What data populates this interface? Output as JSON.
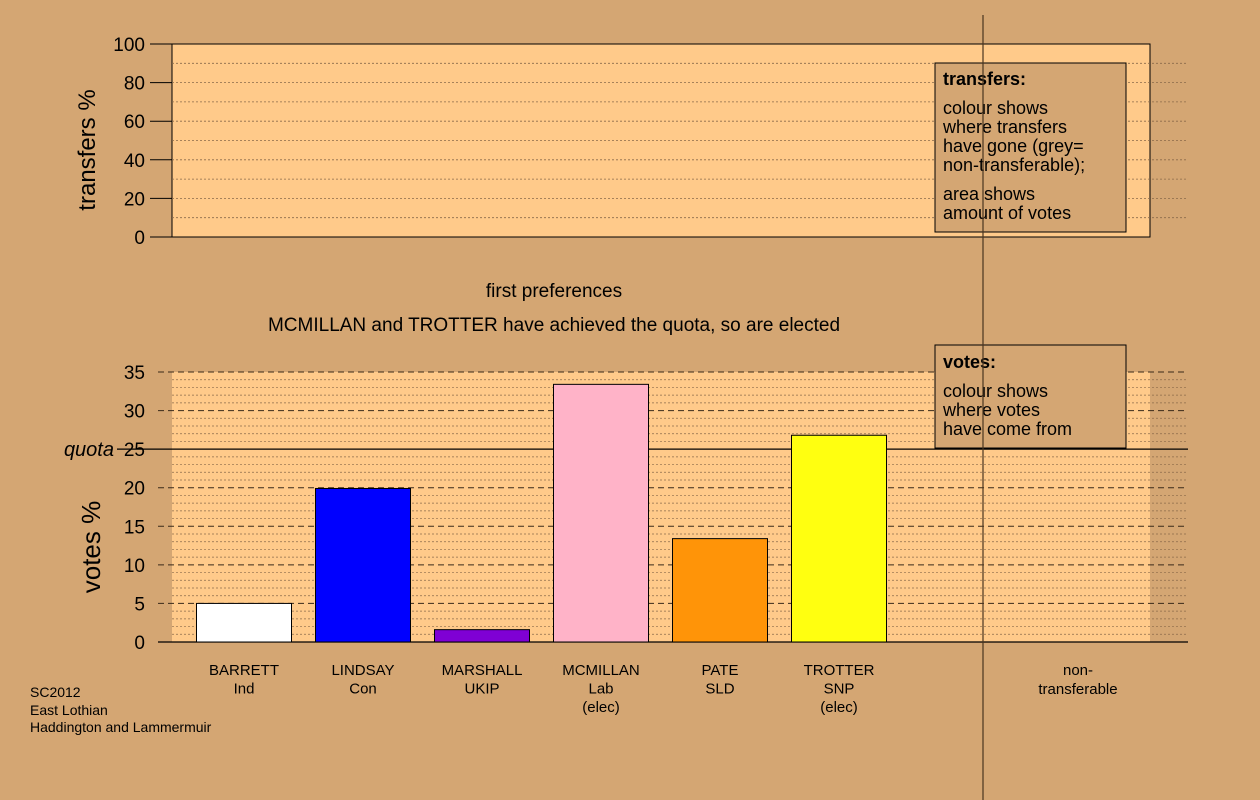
{
  "colors": {
    "background": "#d4a673",
    "plot_fill": "#ffca8a",
    "panel_fill": "#d4a673"
  },
  "top_panel": {
    "ylabel": "transfers %",
    "ticks": [
      "0",
      "20",
      "40",
      "60",
      "80",
      "100"
    ],
    "ylim": [
      0,
      100
    ],
    "legend": {
      "title": "transfers:",
      "lines": [
        "colour shows",
        "where transfers",
        "have gone (grey=",
        "non-transferable);"
      ],
      "lines2": [
        "area shows",
        "amount of votes"
      ]
    }
  },
  "stage_label": "first preferences",
  "status_message": "MCMILLAN and TROTTER have achieved the quota, so are elected",
  "footer": {
    "line1": "SC2012",
    "line2": "East Lothian",
    "line3": "Haddington and Lammermuir"
  },
  "chart_data": {
    "type": "bar",
    "title": "first preferences",
    "ylabel": "votes %",
    "ylim": [
      0,
      35
    ],
    "ticks": [
      "0",
      "5",
      "10",
      "15",
      "20",
      "25",
      "30",
      "35"
    ],
    "quota": {
      "label": "quota",
      "value": 25
    },
    "legend": {
      "title": "votes:",
      "lines": [
        "colour shows",
        "where votes",
        "have come from"
      ]
    },
    "categories": [
      {
        "name": "BARRETT",
        "party": "Ind",
        "note": "",
        "value": 5.0,
        "color": "#ffffff"
      },
      {
        "name": "LINDSAY",
        "party": "Con",
        "note": "",
        "value": 19.9,
        "color": "#0000ff"
      },
      {
        "name": "MARSHALL",
        "party": "UKIP",
        "note": "",
        "value": 1.6,
        "color": "#7f00d4"
      },
      {
        "name": "MCMILLAN",
        "party": "Lab",
        "note": "(elec)",
        "value": 33.4,
        "color": "#ffb3c8"
      },
      {
        "name": "PATE",
        "party": "SLD",
        "note": "",
        "value": 13.4,
        "color": "#ff9408"
      },
      {
        "name": "TROTTER",
        "party": "SNP",
        "note": "(elec)",
        "value": 26.8,
        "color": "#ffff10"
      }
    ],
    "nontransferable": {
      "line1": "non-",
      "line2": "transferable",
      "value": 0
    }
  }
}
